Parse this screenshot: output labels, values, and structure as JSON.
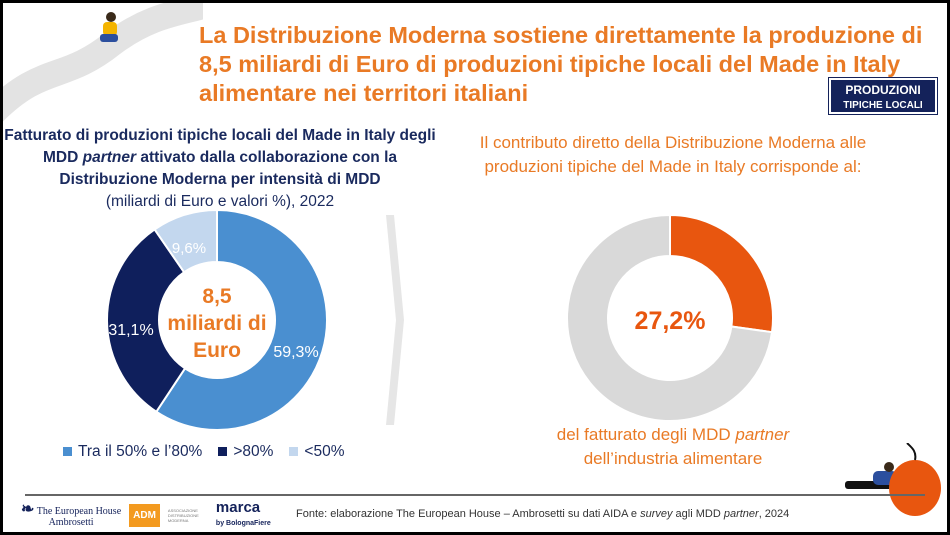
{
  "header": {
    "title": "La Distribuzione Moderna sostiene direttamente la produzione di 8,5 miliardi di Euro di produzioni tipiche locali del Made in Italy alimentare nei territori italiani",
    "badge_line1": "Produzioni",
    "badge_line2": "tipiche locali"
  },
  "left": {
    "subtitle_a": "Fatturato di produzioni tipiche locali del Made in Italy degli MDD ",
    "subtitle_em": "partner",
    "subtitle_b": " attivato dalla collaborazione con la Distribuzione Moderna per intensità di MDD",
    "subtitle_units": "(miliardi di Euro e valori %), 2022",
    "center_line1": "8,5",
    "center_line2": "miliardi di",
    "center_line3": "Euro"
  },
  "right": {
    "intro": "Il contributo diretto della Distribuzione Moderna alle produzioni tipiche del Made in Italy corrisponde al:",
    "center": "27,2%",
    "foot_a": "del fatturato degli MDD ",
    "foot_em": "partner",
    "foot_b": "dell’industria alimentare"
  },
  "footer": {
    "source_a": "Fonte: elaborazione The European House – Ambrosetti su dati AIDA e ",
    "source_em1": "survey",
    "source_b": " agli MDD ",
    "source_em2": "partner",
    "source_c": ", 2024",
    "logos": [
      "The European House Ambrosetti",
      "ADM",
      "marca by BolognaFiere"
    ]
  },
  "chart_data": [
    {
      "type": "pie",
      "donut": true,
      "categories": [
        "Tra il 50% e l’80%",
        ">80%",
        "<50%"
      ],
      "values": [
        59.3,
        31.1,
        9.6
      ],
      "labels": [
        "59,3%",
        "31,1%",
        "9,6%"
      ],
      "colors": [
        "#4a8fd0",
        "#0f1f5c",
        "#c3d7ee"
      ],
      "legend": "bottom"
    },
    {
      "type": "pie",
      "donut": true,
      "values": [
        27.2,
        72.8
      ],
      "labels": [
        "27,2%",
        ""
      ],
      "colors": [
        "#e8560f",
        "#d9d9d9"
      ]
    }
  ]
}
